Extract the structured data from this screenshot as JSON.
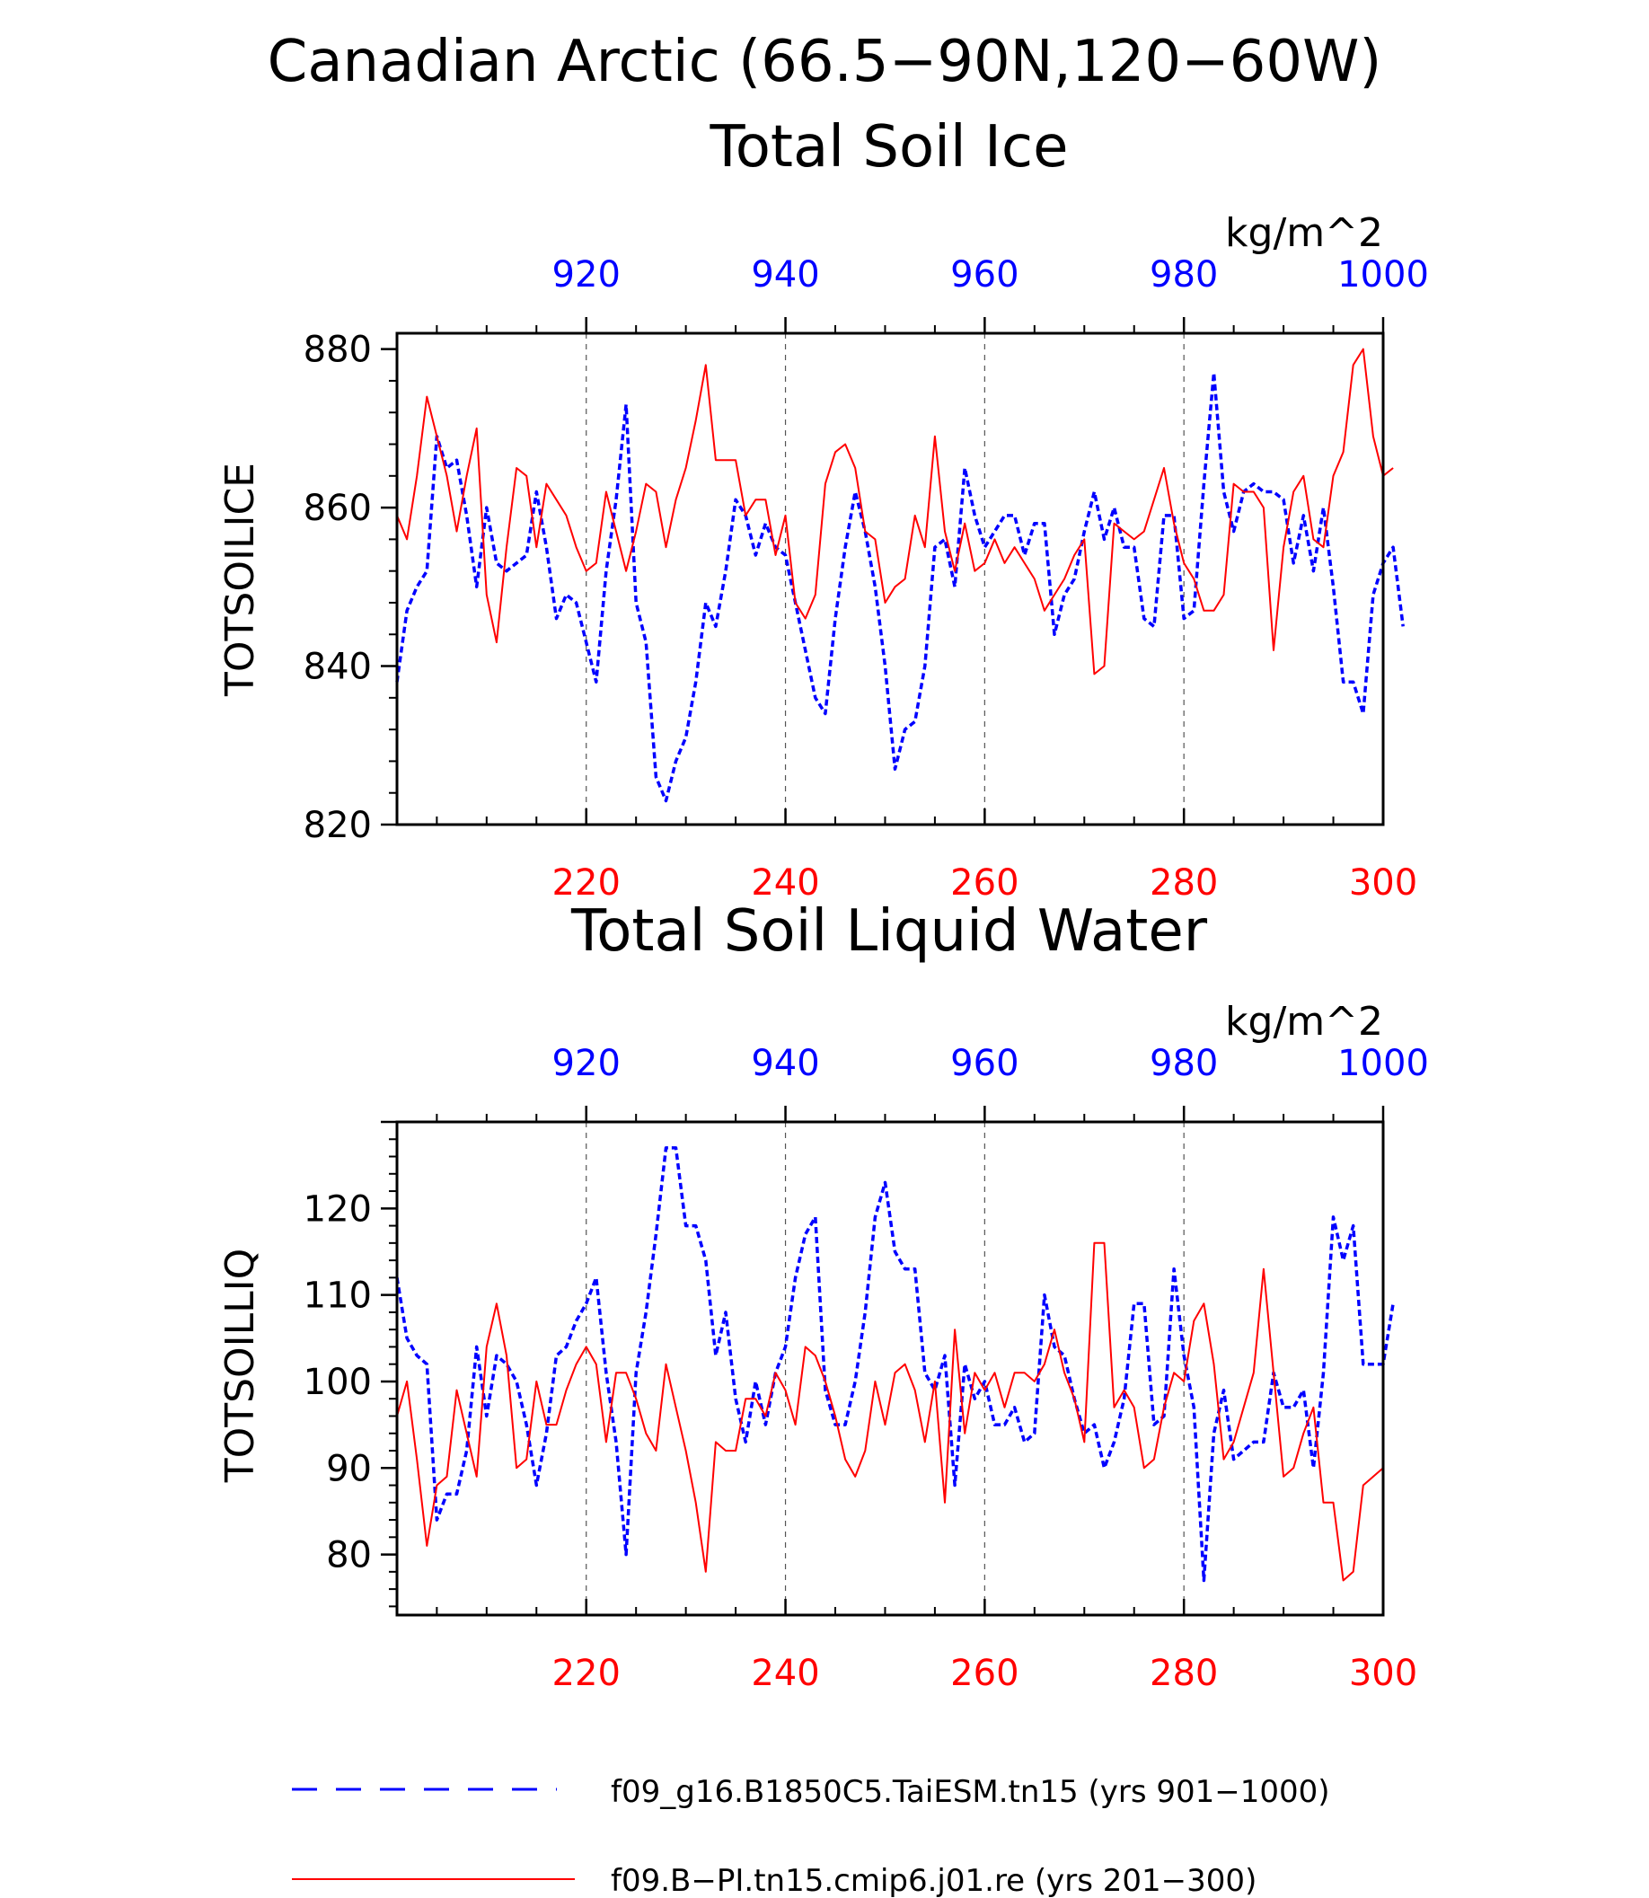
{
  "figure": {
    "title_line1": "Canadian Arctic (66.5−90N,120−60W)",
    "colors": {
      "series_blue": "#0000ff",
      "series_red": "#ff0000",
      "axis": "#000000",
      "grid": "#555555"
    }
  },
  "chart_data": [
    {
      "type": "line",
      "title": "Total Soil Ice",
      "units": "kg/m^2",
      "ylabel": "TOTSOILICE",
      "ylim": [
        820,
        882
      ],
      "y_ticks": [
        "820",
        "840",
        "860",
        "880"
      ],
      "bottom_axis": {
        "range": [
          201,
          300
        ],
        "ticks": [
          "220",
          "240",
          "260",
          "280",
          "300"
        ]
      },
      "top_axis": {
        "range": [
          901,
          1000
        ],
        "ticks": [
          "920",
          "940",
          "960",
          "980",
          "1000"
        ]
      },
      "grid": "dashed vertical at major ticks",
      "series": [
        {
          "name": "f09_g16.B1850C5.TaiESM.tn15 (yrs 901−1000)",
          "axis": "top",
          "style": "dashed",
          "x_start": 901,
          "values": [
            838,
            847,
            850,
            852,
            869,
            865,
            866,
            859,
            850,
            860,
            853,
            852,
            853,
            854,
            862,
            855,
            846,
            849,
            848,
            843,
            838,
            852,
            861,
            873,
            848,
            843,
            826,
            823,
            828,
            831,
            838,
            848,
            845,
            852,
            861,
            859,
            854,
            858,
            855,
            854,
            848,
            842,
            836,
            834,
            846,
            855,
            862,
            857,
            850,
            840,
            827,
            832,
            833,
            840,
            855,
            856,
            850,
            865,
            859,
            855,
            857,
            859,
            859,
            854,
            858,
            858,
            844,
            849,
            851,
            857,
            862,
            856,
            860,
            855,
            855,
            846,
            845,
            859,
            859,
            846,
            847,
            863,
            877,
            862,
            857,
            862,
            863,
            862,
            862,
            861,
            853,
            859,
            852,
            860,
            850,
            838,
            838,
            834,
            849,
            853,
            855,
            845
          ]
        },
        {
          "name": "f09.B−PI.tn15.cmip6.j01.re (yrs 201−300)",
          "axis": "bottom",
          "style": "solid",
          "x_start": 201,
          "values": [
            859,
            856,
            864,
            874,
            869,
            864,
            857,
            864,
            870,
            849,
            843,
            855,
            865,
            864,
            855,
            863,
            861,
            859,
            855,
            852,
            853,
            862,
            857,
            852,
            857,
            863,
            862,
            855,
            861,
            865,
            871,
            878,
            866,
            866,
            866,
            859,
            861,
            861,
            854,
            859,
            848,
            846,
            849,
            863,
            867,
            868,
            865,
            857,
            856,
            848,
            850,
            851,
            859,
            855,
            869,
            857,
            852,
            858,
            852,
            853,
            856,
            853,
            855,
            853,
            851,
            847,
            849,
            851,
            854,
            856,
            839,
            840,
            858,
            857,
            856,
            857,
            861,
            865,
            858,
            853,
            851,
            847,
            847,
            849,
            863,
            862,
            862,
            860,
            842,
            855,
            862,
            864,
            856,
            855,
            864,
            867,
            878,
            880,
            869,
            864,
            865
          ]
        }
      ]
    },
    {
      "type": "line",
      "title": "Total Soil Liquid Water",
      "units": "kg/m^2",
      "ylabel": "TOTSOILLIQ",
      "ylim": [
        73,
        130
      ],
      "y_ticks": [
        "80",
        "90",
        "100",
        "110",
        "120"
      ],
      "bottom_axis": {
        "range": [
          201,
          300
        ],
        "ticks": [
          "220",
          "240",
          "260",
          "280",
          "300"
        ]
      },
      "top_axis": {
        "range": [
          901,
          1000
        ],
        "ticks": [
          "920",
          "940",
          "960",
          "980",
          "1000"
        ]
      },
      "grid": "dashed vertical at major ticks",
      "series": [
        {
          "name": "f09_g16.B1850C5.TaiESM.tn15 (yrs 901−1000)",
          "axis": "top",
          "style": "dashed",
          "x_start": 901,
          "values": [
            112,
            105,
            103,
            102,
            84,
            87,
            87,
            92,
            104,
            96,
            103,
            102,
            100,
            95,
            88,
            94,
            103,
            104,
            107,
            109,
            112,
            101,
            93,
            80,
            101,
            108,
            117,
            127,
            127,
            118,
            118,
            114,
            103,
            108,
            98,
            93,
            100,
            95,
            101,
            104,
            112,
            117,
            119,
            99,
            95,
            95,
            100,
            108,
            119,
            123,
            115,
            113,
            113,
            101,
            99,
            103,
            88,
            102,
            98,
            100,
            95,
            95,
            97,
            93,
            94,
            110,
            104,
            103,
            98,
            94,
            95,
            90,
            93,
            98,
            109,
            109,
            95,
            96,
            113,
            103,
            97,
            77,
            94,
            99,
            91,
            92,
            93,
            93,
            101,
            97,
            97,
            99,
            90,
            101,
            119,
            114,
            118,
            102,
            102,
            102,
            109
          ]
        },
        {
          "name": "f09.B−PI.tn15.cmip6.j01.re (yrs 201−300)",
          "axis": "bottom",
          "style": "solid",
          "x_start": 201,
          "values": [
            96,
            100,
            91,
            81,
            88,
            89,
            99,
            94,
            89,
            104,
            109,
            103,
            90,
            91,
            100,
            95,
            95,
            99,
            102,
            104,
            102,
            93,
            101,
            101,
            98,
            94,
            92,
            102,
            97,
            92,
            86,
            78,
            93,
            92,
            92,
            98,
            98,
            96,
            101,
            99,
            95,
            104,
            103,
            100,
            96,
            91,
            89,
            92,
            100,
            95,
            101,
            102,
            99,
            93,
            100,
            86,
            106,
            94,
            101,
            99,
            101,
            97,
            101,
            101,
            100,
            102,
            106,
            101,
            98,
            93,
            116,
            116,
            97,
            99,
            97,
            90,
            91,
            97,
            101,
            100,
            107,
            109,
            102,
            91,
            93,
            97,
            101,
            113,
            101,
            89,
            90,
            94,
            97,
            86,
            86,
            77,
            78,
            88,
            89,
            90
          ]
        }
      ]
    }
  ],
  "legend": {
    "entries": [
      {
        "style": "dashed",
        "label": "f09_g16.B1850C5.TaiESM.tn15 (yrs 901−1000)"
      },
      {
        "style": "solid",
        "label": "f09.B−PI.tn15.cmip6.j01.re (yrs 201−300)"
      }
    ]
  }
}
